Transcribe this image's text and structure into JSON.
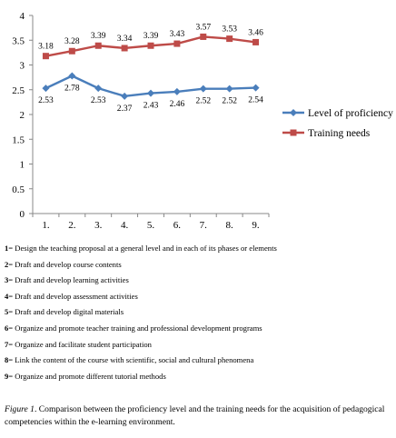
{
  "chart_data": {
    "type": "line",
    "categories": [
      "1.",
      "2.",
      "3.",
      "4.",
      "5.",
      "6.",
      "7.",
      "8.",
      "9."
    ],
    "ylim": [
      0,
      4
    ],
    "yticks": [
      "0",
      "0.5",
      "1",
      "1.5",
      "2",
      "2.5",
      "3",
      "3.5",
      "4"
    ],
    "legend_position": "right",
    "grid": false,
    "series": [
      {
        "name": "Level of proficiency",
        "marker": "diamond",
        "color": "#4a7ebb",
        "values": [
          2.53,
          2.78,
          2.53,
          2.37,
          2.43,
          2.46,
          2.52,
          2.52,
          2.54
        ],
        "labels": [
          "2.53",
          "2.78",
          "2.53",
          "2.37",
          "2.43",
          "2.46",
          "2.52",
          "2.52",
          "2.54"
        ]
      },
      {
        "name": "Training needs",
        "marker": "square",
        "color": "#be4b48",
        "values": [
          3.18,
          3.28,
          3.39,
          3.34,
          3.39,
          3.43,
          3.57,
          3.53,
          3.46
        ],
        "labels": [
          "3.18",
          "3.28",
          "3.39",
          "3.34",
          "3.39",
          "3.43",
          "3.57",
          "3.53",
          "3.46"
        ]
      }
    ]
  },
  "items": [
    {
      "num": "1",
      "text": "= Design the teaching proposal at a general level and in each of its phases or elements"
    },
    {
      "num": "2",
      "text": "= Draft and develop course contents"
    },
    {
      "num": "3",
      "text": "= Draft and develop learning activities"
    },
    {
      "num": "4",
      "text": "= Draft and develop assessment activities"
    },
    {
      "num": "5",
      "text": "= Draft and develop digital materials"
    },
    {
      "num": "6",
      "text": "= Organize and promote teacher training and professional development programs"
    },
    {
      "num": "7",
      "text": "= Organize and facilitate student participation"
    },
    {
      "num": "8",
      "text": "= Link the content of the course with scientific, social and cultural phenomena"
    },
    {
      "num": "9",
      "text": "= Organize and promote different tutorial methods"
    }
  ],
  "caption": {
    "figure_label": "Figure 1",
    "text": ". Comparison between the proficiency level and the training needs for the acquisition of pedagogical competencies within the e-learning environment."
  }
}
